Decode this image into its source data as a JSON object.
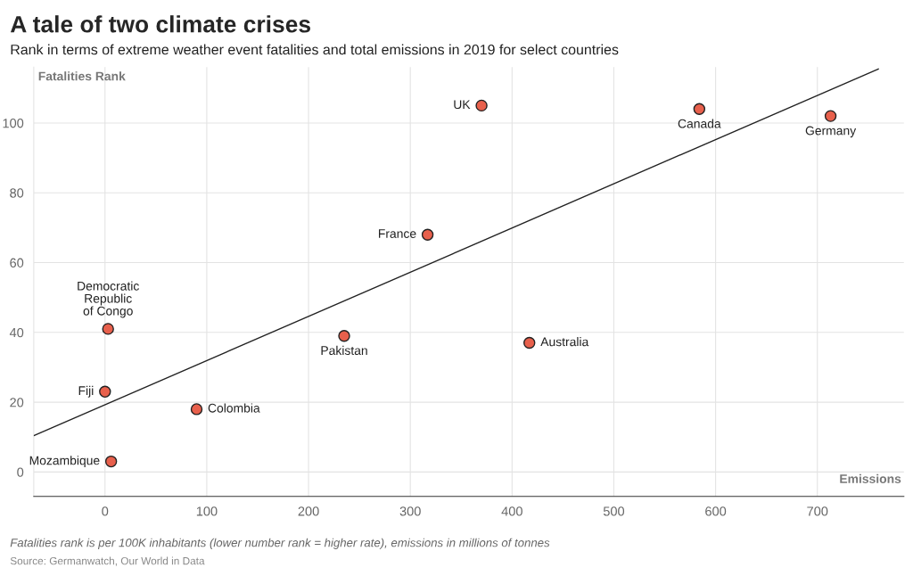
{
  "chart_data": {
    "type": "scatter",
    "title": "A tale of two climate crises",
    "subtitle": "Rank in terms of extreme weather event fatalities and total emissions in 2019 for select countries",
    "xlabel": "Emissions",
    "ylabel": "Fatalities Rank",
    "series": [
      {
        "color": "#e8604c",
        "marker": "circle",
        "x": [
          370,
          584,
          713,
          317,
          235,
          417,
          3,
          0,
          90,
          6
        ],
        "values": [
          105,
          104,
          102,
          68,
          39,
          37,
          41,
          23,
          18,
          3
        ]
      },
      {
        "type": "line",
        "color": "#222222",
        "marker": "none",
        "x": [
          -70,
          760
        ],
        "values": [
          10.4,
          115.5
        ]
      }
    ],
    "xlim": [
      -70,
      785
    ],
    "ylim": [
      -7,
      116
    ],
    "xticks": [
      0,
      100,
      200,
      300,
      400,
      500,
      600,
      700
    ],
    "yticks": [
      0,
      20,
      40,
      60,
      80,
      100
    ],
    "grid": true,
    "annotations": [
      {
        "text": "UK",
        "x": 370,
        "y": 105
      },
      {
        "text": "Canada",
        "x": 584,
        "y": 104
      },
      {
        "text": "Germany",
        "x": 713,
        "y": 102
      },
      {
        "text": "France",
        "x": 317,
        "y": 68
      },
      {
        "text": "Pakistan",
        "x": 235,
        "y": 39
      },
      {
        "text": "Australia",
        "x": 417,
        "y": 37
      },
      {
        "text": "Democratic\nRepublic\nof Congo",
        "x": 3,
        "y": 41
      },
      {
        "text": "Fiji",
        "x": 0,
        "y": 23
      },
      {
        "text": "Colombia",
        "x": 90,
        "y": 18
      },
      {
        "text": "Mozambique",
        "x": 6,
        "y": 3
      },
      "Fatalities rank is per 100K inhabitants (lower number rank = higher rate), emissions in millions of tonnes",
      "Source: Germanwatch, Our World in Data"
    ]
  }
}
